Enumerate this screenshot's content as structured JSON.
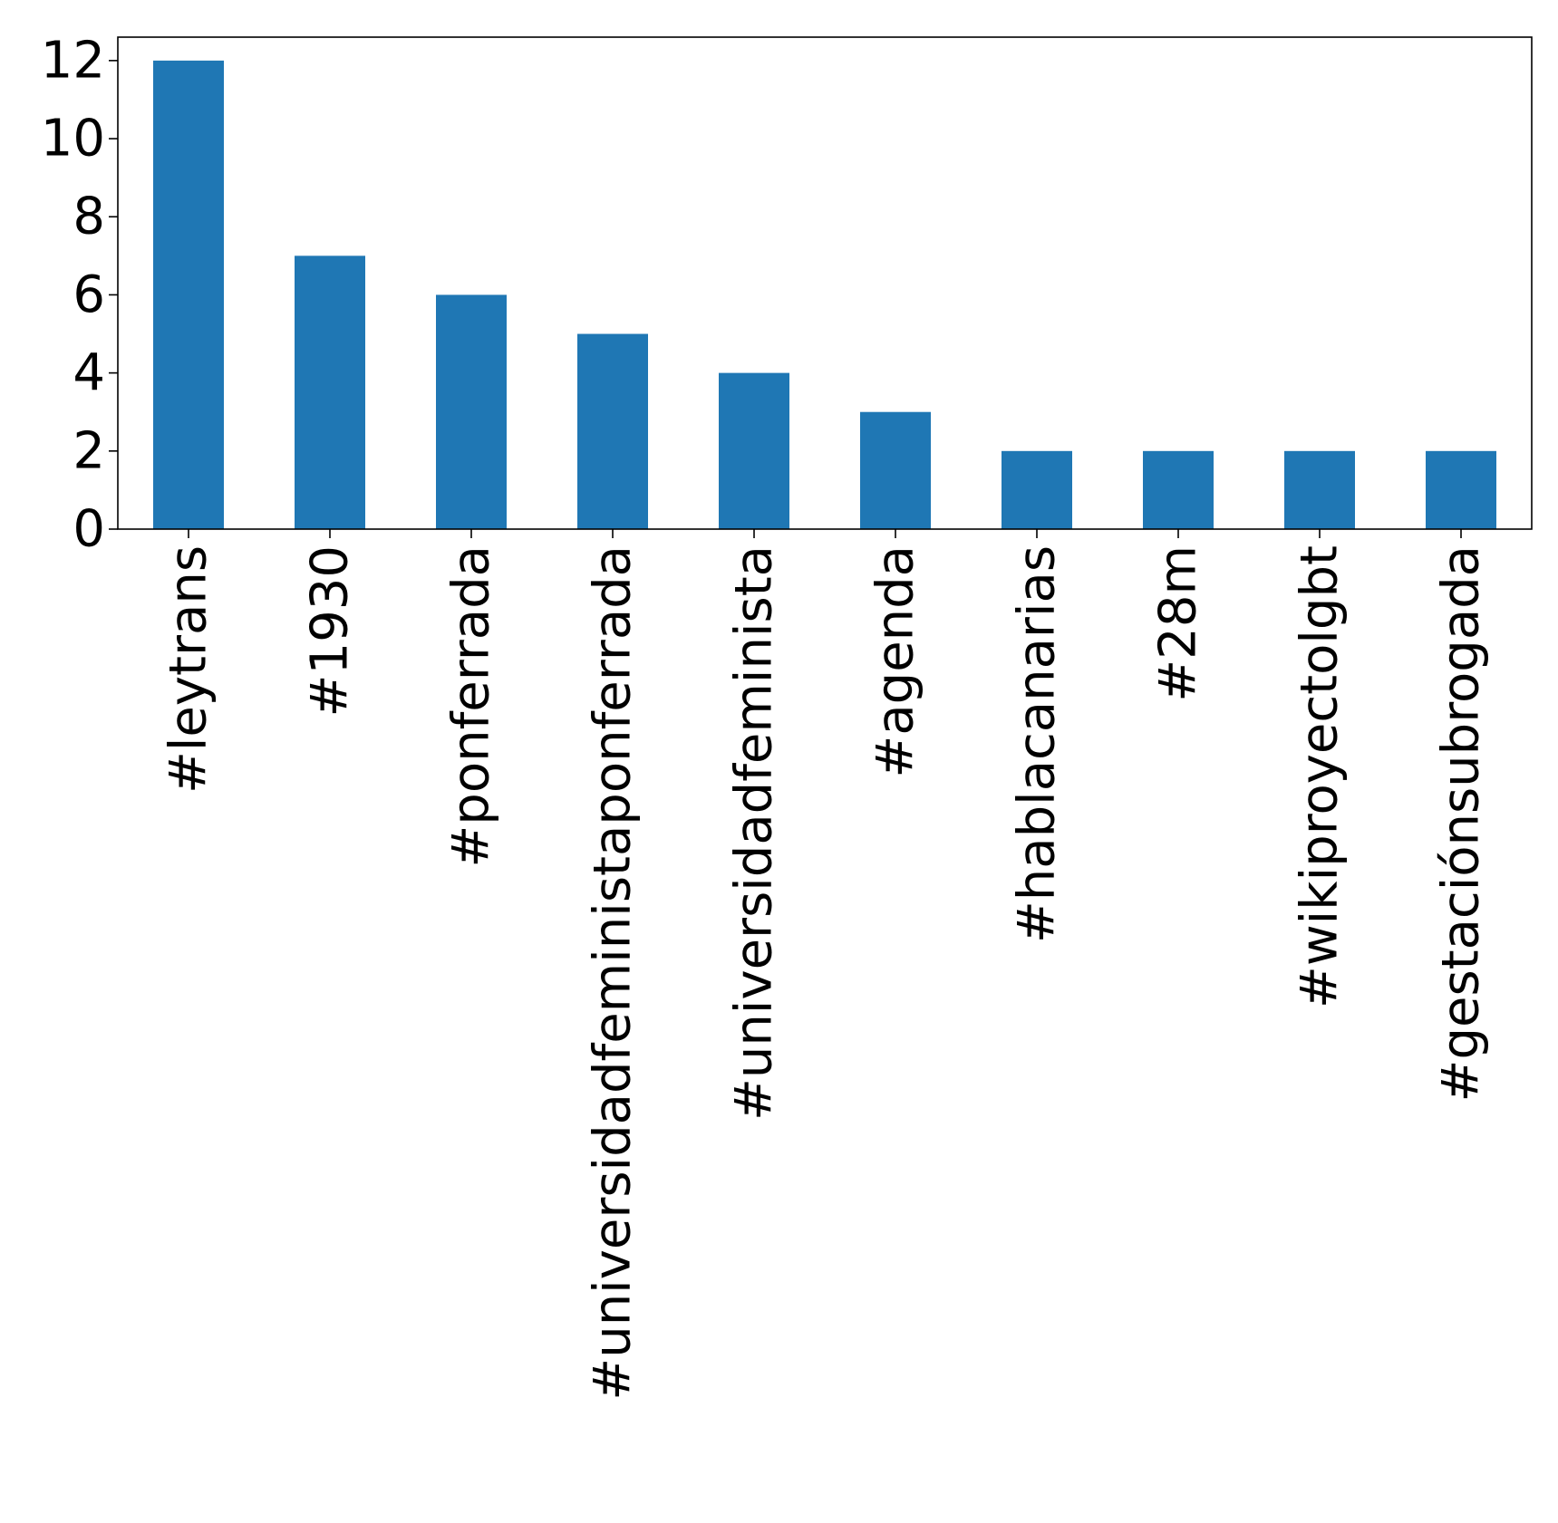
{
  "chart_data": {
    "type": "bar",
    "categories": [
      "#leytrans",
      "#1930",
      "#ponferrada",
      "#universidadfeministaponferrada",
      "#universidadfeminista",
      "#agenda",
      "#hablacanarias",
      "#28m",
      "#wikiproyectolgbt",
      "#gestaciónsubrogada"
    ],
    "values": [
      12,
      7,
      6,
      5,
      4,
      3,
      2,
      2,
      2,
      2
    ],
    "title": "",
    "xlabel": "",
    "ylabel": "",
    "ylim": [
      0,
      12.6
    ],
    "yticks": [
      0,
      2,
      4,
      6,
      8,
      10,
      12
    ],
    "grid": false,
    "legend": "none",
    "bar_color": "#1f77b4"
  }
}
